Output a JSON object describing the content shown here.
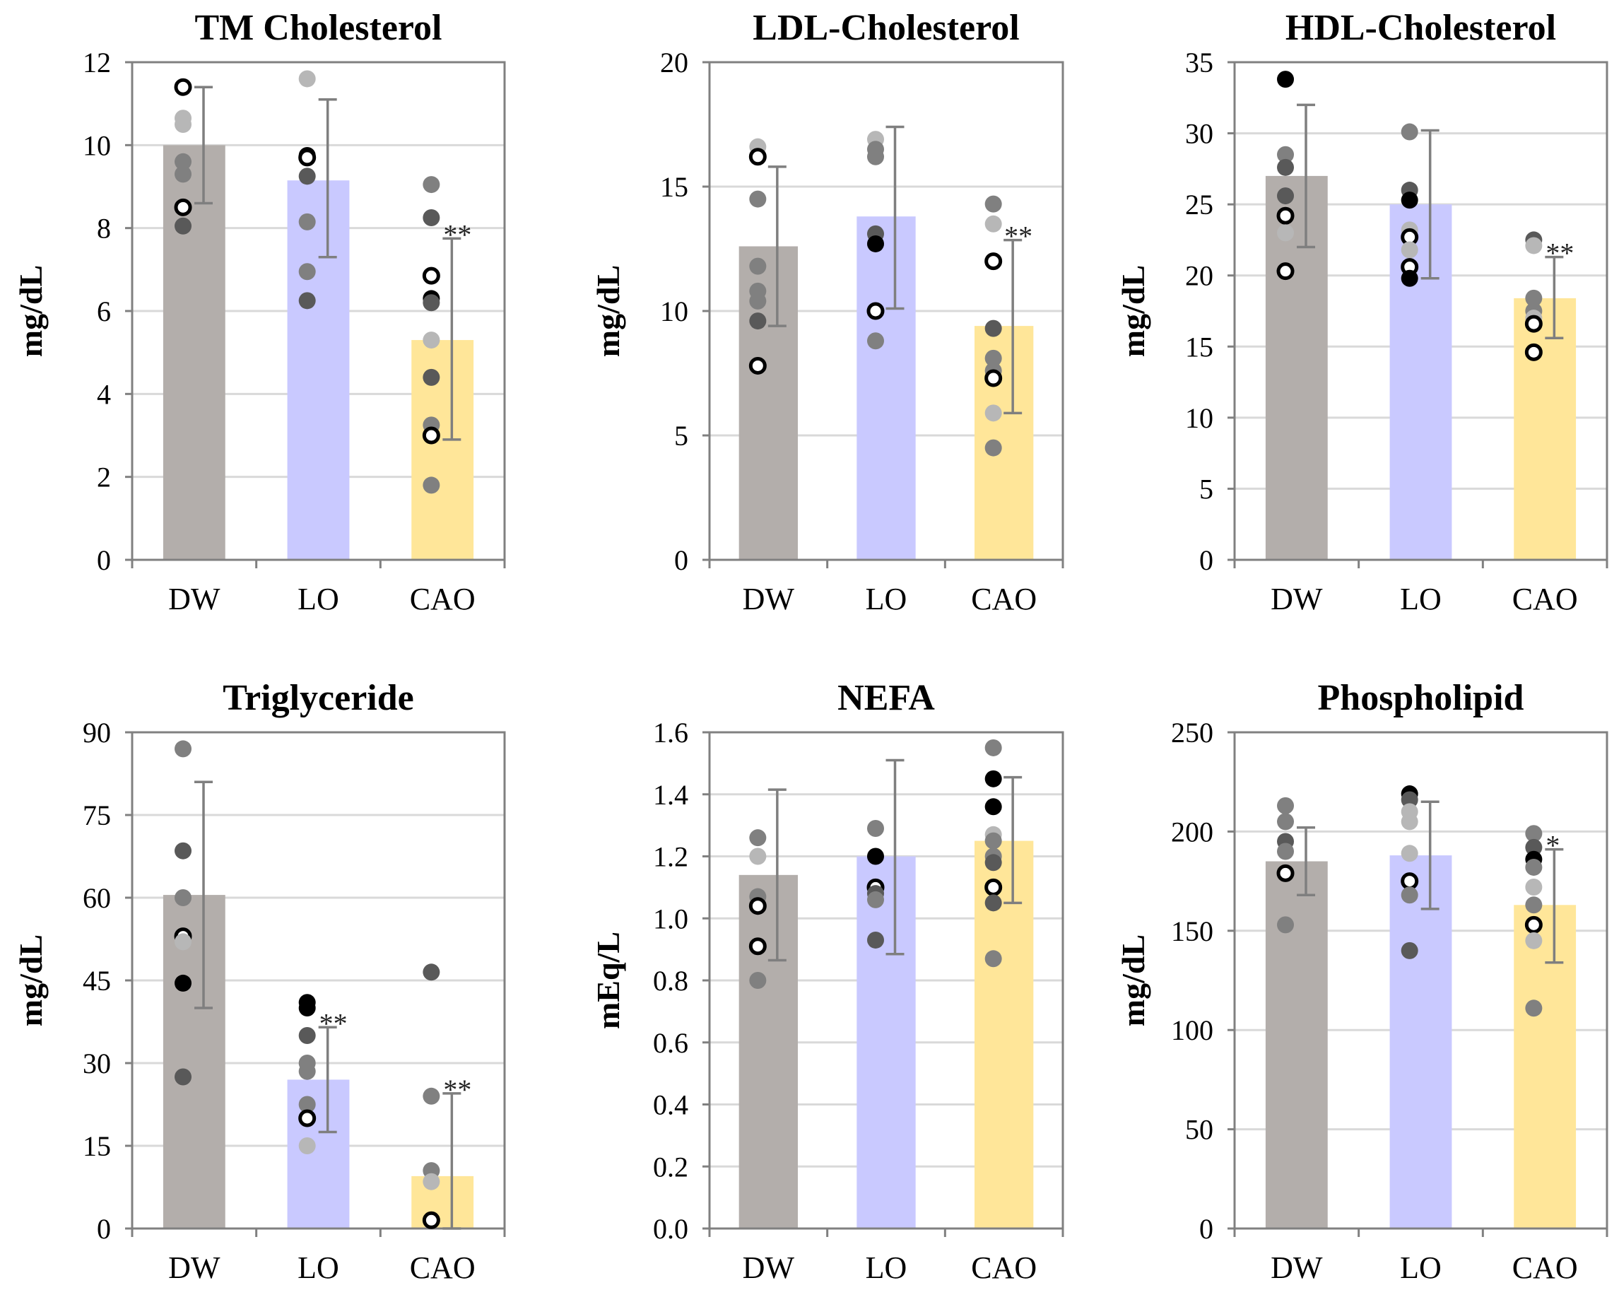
{
  "chart_data": [
    {
      "type": "bar",
      "title": "TM Cholesterol",
      "ylabel": "mg/dL",
      "ylim": [
        0,
        12
      ],
      "yticks": [
        "0",
        "2",
        "4",
        "6",
        "8",
        "10",
        "12"
      ],
      "categories": [
        "DW",
        "LO",
        "CAO"
      ],
      "colors": [
        "#b3aeab",
        "#c9c9ff",
        "#ffe699"
      ],
      "values": [
        10.0,
        9.15,
        5.3
      ],
      "error_low": [
        8.6,
        7.3,
        2.9
      ],
      "error_high": [
        11.4,
        11.1,
        7.75
      ],
      "significance": [
        "",
        "",
        "**"
      ],
      "points": [
        [
          [
            11.4,
            "open"
          ],
          [
            10.65,
            "light"
          ],
          [
            10.5,
            "light"
          ],
          [
            9.6,
            "mid"
          ],
          [
            9.3,
            "mid"
          ],
          [
            8.5,
            "open"
          ],
          [
            8.05,
            "dark"
          ]
        ],
        [
          [
            11.6,
            "light"
          ],
          [
            9.75,
            "black"
          ],
          [
            9.7,
            "open"
          ],
          [
            9.25,
            "dark"
          ],
          [
            8.15,
            "mid"
          ],
          [
            6.95,
            "mid"
          ],
          [
            6.25,
            "dark"
          ]
        ],
        [
          [
            9.05,
            "mid"
          ],
          [
            8.25,
            "dark"
          ],
          [
            6.85,
            "open"
          ],
          [
            6.3,
            "black"
          ],
          [
            6.2,
            "dark"
          ],
          [
            5.3,
            "light"
          ],
          [
            4.4,
            "dark"
          ],
          [
            3.25,
            "mid"
          ],
          [
            3.0,
            "open"
          ],
          [
            1.8,
            "mid"
          ]
        ]
      ]
    },
    {
      "type": "bar",
      "title": "LDL-Cholesterol",
      "ylabel": "mg/dL",
      "ylim": [
        0,
        20
      ],
      "yticks": [
        "0",
        "5",
        "10",
        "15",
        "20"
      ],
      "categories": [
        "DW",
        "LO",
        "CAO"
      ],
      "colors": [
        "#b3aeab",
        "#c9c9ff",
        "#ffe699"
      ],
      "values": [
        12.6,
        13.8,
        9.4
      ],
      "error_low": [
        9.4,
        10.1,
        5.9
      ],
      "error_high": [
        15.8,
        17.4,
        12.85
      ],
      "significance": [
        "",
        "",
        "**"
      ],
      "points": [
        [
          [
            16.6,
            "light"
          ],
          [
            16.2,
            "open"
          ],
          [
            14.5,
            "mid"
          ],
          [
            11.8,
            "mid"
          ],
          [
            10.8,
            "mid"
          ],
          [
            10.4,
            "mid"
          ],
          [
            9.6,
            "dark"
          ],
          [
            7.8,
            "open"
          ]
        ],
        [
          [
            16.9,
            "light"
          ],
          [
            16.5,
            "mid"
          ],
          [
            16.2,
            "mid"
          ],
          [
            13.1,
            "dark"
          ],
          [
            12.7,
            "black"
          ],
          [
            10.0,
            "open"
          ],
          [
            8.8,
            "mid"
          ]
        ],
        [
          [
            14.3,
            "mid"
          ],
          [
            13.5,
            "light"
          ],
          [
            12.0,
            "open"
          ],
          [
            9.3,
            "dark"
          ],
          [
            8.1,
            "mid"
          ],
          [
            7.6,
            "mid"
          ],
          [
            7.3,
            "open"
          ],
          [
            5.9,
            "light"
          ],
          [
            4.5,
            "mid"
          ]
        ]
      ]
    },
    {
      "type": "bar",
      "title": "HDL-Cholesterol",
      "ylabel": "mg/dL",
      "ylim": [
        0,
        35
      ],
      "yticks": [
        "0",
        "5",
        "10",
        "15",
        "20",
        "25",
        "30",
        "35"
      ],
      "categories": [
        "DW",
        "LO",
        "CAO"
      ],
      "colors": [
        "#b3aeab",
        "#c9c9ff",
        "#ffe699"
      ],
      "values": [
        27.0,
        25.0,
        18.4
      ],
      "error_low": [
        22.0,
        19.8,
        15.6
      ],
      "error_high": [
        32.0,
        30.2,
        21.3
      ],
      "significance": [
        "",
        "",
        "**"
      ],
      "points": [
        [
          [
            33.8,
            "black"
          ],
          [
            28.5,
            "mid"
          ],
          [
            27.6,
            "dark"
          ],
          [
            25.6,
            "dark"
          ],
          [
            24.2,
            "open"
          ],
          [
            23.0,
            "light"
          ],
          [
            20.3,
            "open"
          ]
        ],
        [
          [
            30.1,
            "mid"
          ],
          [
            26.0,
            "dark"
          ],
          [
            25.3,
            "black"
          ],
          [
            23.2,
            "light"
          ],
          [
            22.7,
            "open"
          ],
          [
            21.8,
            "light"
          ],
          [
            20.6,
            "open"
          ],
          [
            19.8,
            "black"
          ]
        ],
        [
          [
            22.5,
            "dark"
          ],
          [
            22.1,
            "light"
          ],
          [
            18.4,
            "mid"
          ],
          [
            17.5,
            "mid"
          ],
          [
            17.0,
            "light"
          ],
          [
            16.6,
            "open"
          ],
          [
            14.6,
            "open"
          ]
        ]
      ]
    },
    {
      "type": "bar",
      "title": "Triglyceride",
      "ylabel": "mg/dL",
      "ylim": [
        0,
        90
      ],
      "yticks": [
        "0",
        "15",
        "30",
        "45",
        "60",
        "75",
        "90"
      ],
      "categories": [
        "DW",
        "LO",
        "CAO"
      ],
      "colors": [
        "#b3aeab",
        "#c9c9ff",
        "#ffe699"
      ],
      "values": [
        60.5,
        27.0,
        9.5
      ],
      "error_low": [
        40.0,
        17.5,
        0
      ],
      "error_high": [
        81.0,
        36.5,
        24.5
      ],
      "significance": [
        "",
        "**",
        "**"
      ],
      "points": [
        [
          [
            87.0,
            "mid"
          ],
          [
            68.5,
            "dark"
          ],
          [
            60.0,
            "mid"
          ],
          [
            53.0,
            "open"
          ],
          [
            52.0,
            "light"
          ],
          [
            44.5,
            "black"
          ],
          [
            27.5,
            "dark"
          ]
        ],
        [
          [
            41.0,
            "black"
          ],
          [
            40.0,
            "black"
          ],
          [
            35.0,
            "dark"
          ],
          [
            30.0,
            "mid"
          ],
          [
            28.5,
            "mid"
          ],
          [
            22.5,
            "mid"
          ],
          [
            20.0,
            "open"
          ],
          [
            15.0,
            "light"
          ]
        ],
        [
          [
            46.5,
            "dark"
          ],
          [
            24.0,
            "mid"
          ],
          [
            10.5,
            "mid"
          ],
          [
            8.5,
            "light"
          ],
          [
            1.5,
            "open"
          ]
        ]
      ]
    },
    {
      "type": "bar",
      "title": "NEFA",
      "ylabel": "mEq/L",
      "ylim": [
        0,
        1.6
      ],
      "yticks": [
        "0.0",
        "0.2",
        "0.4",
        "0.6",
        "0.8",
        "1.0",
        "1.2",
        "1.4",
        "1.6"
      ],
      "categories": [
        "DW",
        "LO",
        "CAO"
      ],
      "colors": [
        "#b3aeab",
        "#c9c9ff",
        "#ffe699"
      ],
      "values": [
        1.14,
        1.2,
        1.25
      ],
      "error_low": [
        0.865,
        0.885,
        1.05
      ],
      "error_high": [
        1.415,
        1.51,
        1.455
      ],
      "significance": [
        "",
        "",
        ""
      ],
      "points": [
        [
          [
            1.26,
            "mid"
          ],
          [
            1.2,
            "light"
          ],
          [
            1.07,
            "mid"
          ],
          [
            1.04,
            "open"
          ],
          [
            0.91,
            "open"
          ],
          [
            0.8,
            "mid"
          ]
        ],
        [
          [
            1.29,
            "mid"
          ],
          [
            1.2,
            "black"
          ],
          [
            1.1,
            "open"
          ],
          [
            1.08,
            "dark"
          ],
          [
            1.06,
            "mid"
          ],
          [
            0.93,
            "dark"
          ]
        ],
        [
          [
            1.55,
            "mid"
          ],
          [
            1.45,
            "black"
          ],
          [
            1.36,
            "black"
          ],
          [
            1.27,
            "light"
          ],
          [
            1.25,
            "mid"
          ],
          [
            1.2,
            "mid"
          ],
          [
            1.18,
            "dark"
          ],
          [
            1.1,
            "open"
          ],
          [
            1.05,
            "dark"
          ],
          [
            0.87,
            "mid"
          ]
        ]
      ]
    },
    {
      "type": "bar",
      "title": "Phospholipid",
      "ylabel": "mg/dL",
      "ylim": [
        0,
        250
      ],
      "yticks": [
        "0",
        "50",
        "100",
        "150",
        "200",
        "250"
      ],
      "categories": [
        "DW",
        "LO",
        "CAO"
      ],
      "colors": [
        "#b3aeab",
        "#c9c9ff",
        "#ffe699"
      ],
      "values": [
        185.0,
        188.0,
        163.0
      ],
      "error_low": [
        168.0,
        161.0,
        134.0
      ],
      "error_high": [
        202.0,
        215.0,
        191.0
      ],
      "significance": [
        "",
        "",
        "*"
      ],
      "points": [
        [
          [
            213.0,
            "mid"
          ],
          [
            205.0,
            "mid"
          ],
          [
            195.0,
            "dark"
          ],
          [
            190.0,
            "mid"
          ],
          [
            179.0,
            "open"
          ],
          [
            153.0,
            "mid"
          ]
        ],
        [
          [
            219.0,
            "black"
          ],
          [
            216.0,
            "dark"
          ],
          [
            210.0,
            "light"
          ],
          [
            205.0,
            "light"
          ],
          [
            189.0,
            "light"
          ],
          [
            175.0,
            "open"
          ],
          [
            168.0,
            "mid"
          ],
          [
            140.0,
            "dark"
          ]
        ],
        [
          [
            199.0,
            "mid"
          ],
          [
            192.0,
            "dark"
          ],
          [
            186.0,
            "black"
          ],
          [
            182.0,
            "mid"
          ],
          [
            172.0,
            "light"
          ],
          [
            163.0,
            "mid"
          ],
          [
            153.0,
            "open"
          ],
          [
            145.0,
            "light"
          ],
          [
            111.0,
            "mid"
          ]
        ]
      ]
    }
  ]
}
